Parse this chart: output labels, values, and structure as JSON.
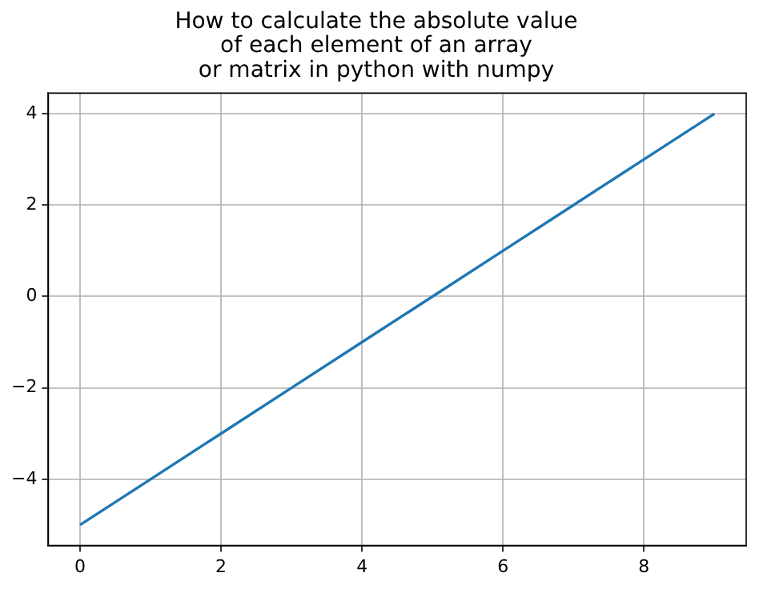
{
  "chart_data": {
    "type": "line",
    "title": "How to calculate the absolute value\nof each element of an array\nor matrix in python with numpy",
    "x": [
      0,
      1,
      2,
      3,
      4,
      5,
      6,
      7,
      8,
      9
    ],
    "series": [
      {
        "color": "#1f77b4",
        "values": [
          -5,
          -4,
          -3,
          -2,
          -1,
          0,
          1,
          2,
          3,
          4
        ]
      }
    ],
    "xlim": [
      -0.45,
      9.45
    ],
    "xticks": [
      0,
      2,
      4,
      6,
      8
    ],
    "ylim": [
      -5.45,
      4.45
    ],
    "yticks": [
      {
        "value": -4,
        "label": "−4"
      },
      {
        "value": -2,
        "label": "−2"
      },
      0,
      2,
      4
    ],
    "grid": true,
    "legend": false,
    "marker": "none",
    "line_style": "solid"
  }
}
